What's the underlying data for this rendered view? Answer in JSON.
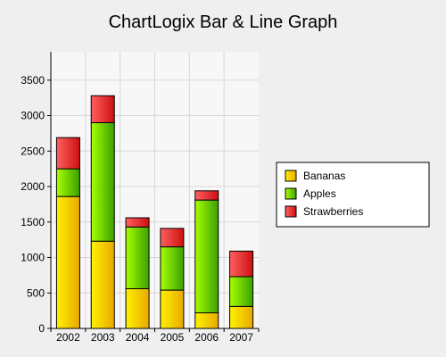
{
  "chart_data": {
    "type": "bar",
    "stacked": true,
    "title": "ChartLogix Bar & Line Graph",
    "xlabel": "",
    "ylabel": "",
    "categories": [
      "2002",
      "2003",
      "2004",
      "2005",
      "2006",
      "2007"
    ],
    "series": [
      {
        "name": "Bananas",
        "values": [
          1860,
          1230,
          560,
          540,
          220,
          310
        ],
        "color": "#ffd800"
      },
      {
        "name": "Apples",
        "values": [
          390,
          1670,
          870,
          610,
          1590,
          420
        ],
        "color": "#7dd800"
      },
      {
        "name": "Strawberries",
        "values": [
          440,
          380,
          130,
          260,
          130,
          360
        ],
        "color": "#ee3333"
      }
    ],
    "ylim": [
      0,
      3900
    ],
    "yticks": [
      0,
      500,
      1000,
      1500,
      2000,
      2500,
      3000,
      3500
    ],
    "grid": true,
    "legend_position": "right"
  }
}
